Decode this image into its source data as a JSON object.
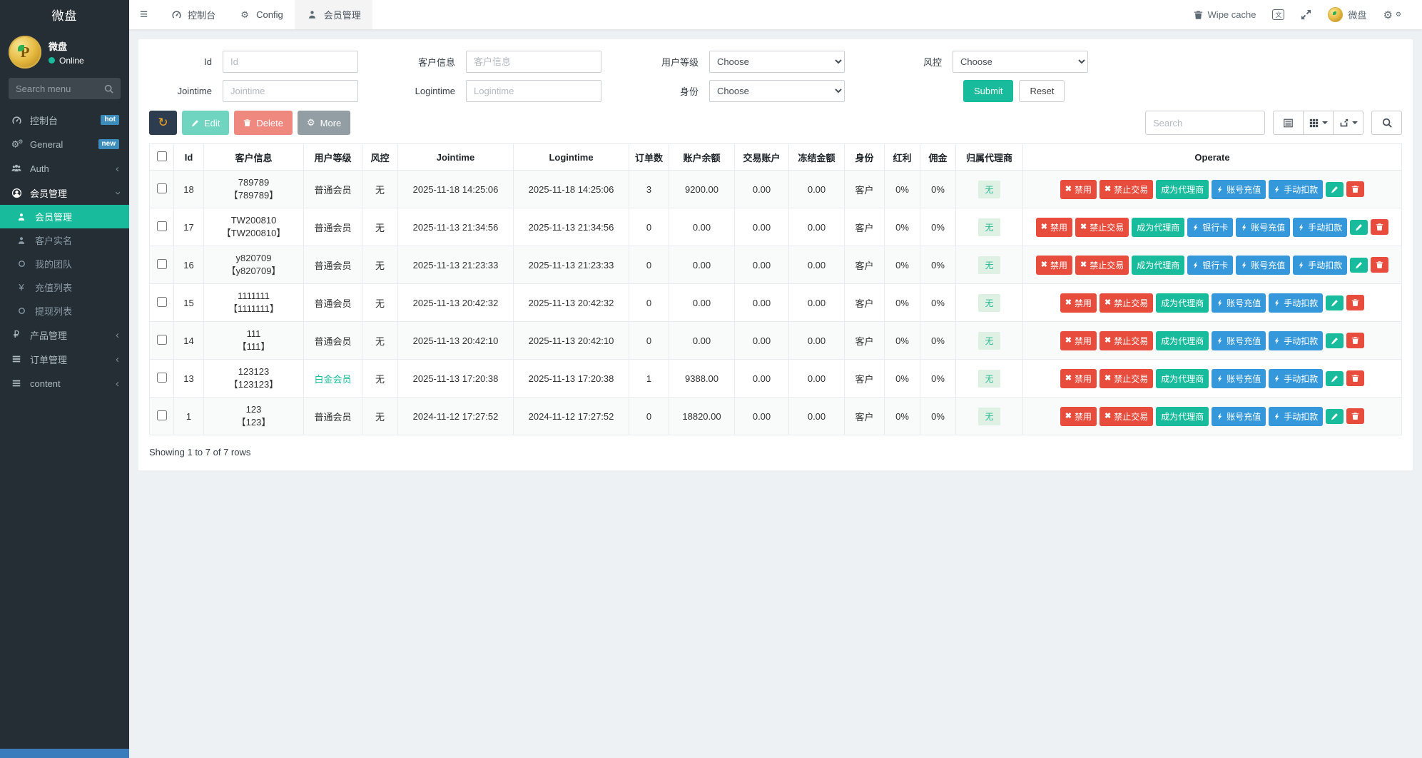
{
  "brand": {
    "title": "微盘"
  },
  "user_panel": {
    "name": "微盘",
    "status": "Online"
  },
  "sidebar": {
    "search_placeholder": "Search menu",
    "menu": [
      {
        "label": "控制台",
        "icon": "dashboard-icon",
        "badge": "hot"
      },
      {
        "label": "General",
        "icon": "gears-icon",
        "badge": "new"
      },
      {
        "label": "Auth",
        "icon": "users-icon",
        "chevron": "left"
      },
      {
        "label": "会员管理",
        "icon": "user-circle-icon",
        "chevron": "down",
        "open": true,
        "children": [
          {
            "label": "会员管理",
            "icon": "person-icon",
            "active": true
          },
          {
            "label": "客户实名",
            "icon": "person-icon"
          },
          {
            "label": "我的团队",
            "icon": "circle-icon"
          },
          {
            "label": "充值列表",
            "icon": "yen-icon"
          },
          {
            "label": "提现列表",
            "icon": "circle-icon"
          }
        ]
      },
      {
        "label": "产品管理",
        "icon": "ruble-icon",
        "chevron": "left"
      },
      {
        "label": "订单管理",
        "icon": "list-icon",
        "chevron": "left"
      },
      {
        "label": "content",
        "icon": "list-icon",
        "chevron": "left"
      }
    ]
  },
  "topnav": {
    "tabs": [
      {
        "label": "控制台"
      },
      {
        "label": "Config"
      },
      {
        "label": "会员管理",
        "active": true
      }
    ],
    "wipe_cache": "Wipe cache",
    "profile_name": "微盘"
  },
  "filters": {
    "fields": [
      {
        "label": "Id",
        "placeholder": "Id"
      },
      {
        "label": "客户信息",
        "placeholder": "客户信息"
      },
      {
        "label": "用户等级",
        "value": "Choose"
      },
      {
        "label": "风控",
        "value": "Choose"
      },
      {
        "label": "Jointime",
        "placeholder": "Jointime"
      },
      {
        "label": "Logintime",
        "placeholder": "Logintime"
      },
      {
        "label": "身份",
        "value": "Choose"
      }
    ],
    "submit_label": "Submit",
    "reset_label": "Reset"
  },
  "toolbar": {
    "edit_label": "Edit",
    "delete_label": "Delete",
    "more_label": "More",
    "search_placeholder": "Search"
  },
  "operate": {
    "disable": "禁用",
    "forbid_trade": "禁止交易",
    "become_agent": "成为代理商",
    "bank_card": "银行卡",
    "recharge": "账号充值",
    "deduct": "手动扣款"
  },
  "table": {
    "columns": [
      "Id",
      "客户信息",
      "用户等级",
      "风控",
      "Jointime",
      "Logintime",
      "订单数",
      "账户余额",
      "交易账户",
      "冻结金额",
      "身份",
      "红利",
      "佣金",
      "归属代理商",
      "Operate"
    ],
    "rows": [
      {
        "id": "18",
        "name": "789789",
        "bracket": "【789789】",
        "level": "普通会员",
        "platinum": false,
        "risk": "无",
        "jointime": "2025-11-18 14:25:06",
        "logintime": "2025-11-18 14:25:06",
        "orders": "3",
        "balance": "9200.00",
        "trade_account": "0.00",
        "frozen": "0.00",
        "identity": "客户",
        "bonus": "0%",
        "commission": "0%",
        "agent": "无",
        "bank_card": false
      },
      {
        "id": "17",
        "name": "TW200810",
        "bracket": "【TW200810】",
        "level": "普通会员",
        "platinum": false,
        "risk": "无",
        "jointime": "2025-11-13 21:34:56",
        "logintime": "2025-11-13 21:34:56",
        "orders": "0",
        "balance": "0.00",
        "trade_account": "0.00",
        "frozen": "0.00",
        "identity": "客户",
        "bonus": "0%",
        "commission": "0%",
        "agent": "无",
        "bank_card": true
      },
      {
        "id": "16",
        "name": "y820709",
        "bracket": "【y820709】",
        "level": "普通会员",
        "platinum": false,
        "risk": "无",
        "jointime": "2025-11-13 21:23:33",
        "logintime": "2025-11-13 21:23:33",
        "orders": "0",
        "balance": "0.00",
        "trade_account": "0.00",
        "frozen": "0.00",
        "identity": "客户",
        "bonus": "0%",
        "commission": "0%",
        "agent": "无",
        "bank_card": true
      },
      {
        "id": "15",
        "name": "1111111",
        "bracket": "【1111111】",
        "level": "普通会员",
        "platinum": false,
        "risk": "无",
        "jointime": "2025-11-13 20:42:32",
        "logintime": "2025-11-13 20:42:32",
        "orders": "0",
        "balance": "0.00",
        "trade_account": "0.00",
        "frozen": "0.00",
        "identity": "客户",
        "bonus": "0%",
        "commission": "0%",
        "agent": "无",
        "bank_card": false
      },
      {
        "id": "14",
        "name": "111",
        "bracket": "【111】",
        "level": "普通会员",
        "platinum": false,
        "risk": "无",
        "jointime": "2025-11-13 20:42:10",
        "logintime": "2025-11-13 20:42:10",
        "orders": "0",
        "balance": "0.00",
        "trade_account": "0.00",
        "frozen": "0.00",
        "identity": "客户",
        "bonus": "0%",
        "commission": "0%",
        "agent": "无",
        "bank_card": false
      },
      {
        "id": "13",
        "name": "123123",
        "bracket": "【123123】",
        "level": "白金会员",
        "platinum": true,
        "risk": "无",
        "jointime": "2025-11-13 17:20:38",
        "logintime": "2025-11-13 17:20:38",
        "orders": "1",
        "balance": "9388.00",
        "trade_account": "0.00",
        "frozen": "0.00",
        "identity": "客户",
        "bonus": "0%",
        "commission": "0%",
        "agent": "无",
        "bank_card": false
      },
      {
        "id": "1",
        "name": "123",
        "bracket": "【123】",
        "level": "普通会员",
        "platinum": false,
        "risk": "无",
        "jointime": "2024-11-12 17:27:52",
        "logintime": "2024-11-12 17:27:52",
        "orders": "0",
        "balance": "18820.00",
        "trade_account": "0.00",
        "frozen": "0.00",
        "identity": "客户",
        "bonus": "0%",
        "commission": "0%",
        "agent": "无",
        "bank_card": false
      }
    ],
    "footer": "Showing 1 to 7 of 7 rows"
  },
  "colors": {
    "accent": "#18bc9c",
    "danger": "#e74c3c",
    "info": "#3498db",
    "badge_blue": "#3c8dbc",
    "sidebar_bg": "#242e34",
    "bottom_strip": "#3b7cbc"
  }
}
